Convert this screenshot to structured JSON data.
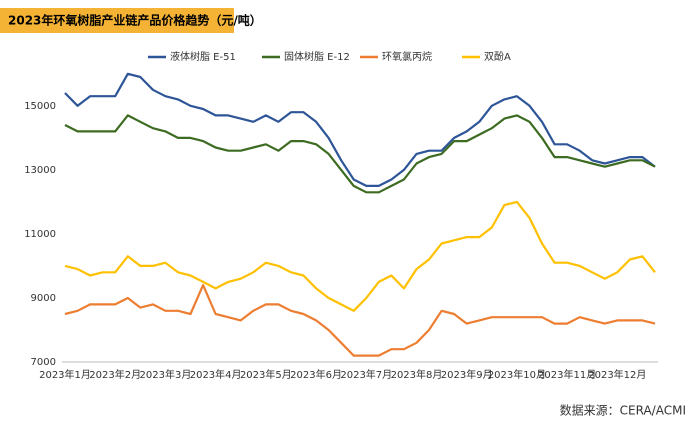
{
  "chart_data": {
    "type": "line",
    "title": "2023年环氧树脂产业链产品价格趋势（元/吨）",
    "source": "数据来源：CERA/ACMI",
    "categories": [
      "2023年1月",
      null,
      null,
      null,
      "2023年2月",
      null,
      null,
      null,
      "2023年3月",
      null,
      null,
      null,
      "2023年4月",
      null,
      null,
      null,
      "2023年5月",
      null,
      null,
      null,
      "2023年6月",
      null,
      null,
      null,
      "2023年7月",
      null,
      null,
      null,
      "2023年8月",
      null,
      null,
      null,
      "2023年9月",
      null,
      null,
      null,
      "2023年10月",
      null,
      null,
      null,
      "2023年11月",
      null,
      null,
      null,
      "2023年12月",
      null,
      null,
      null
    ],
    "series": [
      {
        "name": "液体树脂 E-51",
        "color": "#2e5597",
        "values": [
          15400,
          15000,
          15300,
          15300,
          15300,
          16000,
          15900,
          15500,
          15300,
          15200,
          15000,
          14900,
          14700,
          14700,
          14600,
          14500,
          14700,
          14500,
          14800,
          14800,
          14500,
          14000,
          13300,
          12700,
          12500,
          12500,
          12700,
          13000,
          13500,
          13600,
          13600,
          14000,
          14200,
          14500,
          15000,
          15200,
          15300,
          15000,
          14500,
          13800,
          13800,
          13600,
          13300,
          13200,
          13300,
          13400,
          13400,
          13100
        ]
      },
      {
        "name": "固体树脂 E-12",
        "color": "#3d6b22",
        "values": [
          14400,
          14200,
          14200,
          14200,
          14200,
          14700,
          14500,
          14300,
          14200,
          14000,
          14000,
          13900,
          13700,
          13600,
          13600,
          13700,
          13800,
          13600,
          13900,
          13900,
          13800,
          13500,
          13000,
          12500,
          12300,
          12300,
          12500,
          12700,
          13200,
          13400,
          13500,
          13900,
          13900,
          14100,
          14300,
          14600,
          14700,
          14500,
          14000,
          13400,
          13400,
          13300,
          13200,
          13100,
          13200,
          13300,
          13300,
          13100
        ]
      },
      {
        "name": "环氧氯丙烷",
        "color": "#ed7d31",
        "values": [
          8500,
          8600,
          8800,
          8800,
          8800,
          9000,
          8700,
          8800,
          8600,
          8600,
          8500,
          9400,
          8500,
          8400,
          8300,
          8600,
          8800,
          8800,
          8600,
          8500,
          8300,
          8000,
          7600,
          7200,
          7200,
          7200,
          7400,
          7400,
          7600,
          8000,
          8600,
          8500,
          8200,
          8300,
          8400,
          8400,
          8400,
          8400,
          8400,
          8200,
          8200,
          8400,
          8300,
          8200,
          8300,
          8300,
          8300,
          8200
        ]
      },
      {
        "name": "双酚A",
        "color": "#ffc000",
        "values": [
          10000,
          9900,
          9700,
          9800,
          9800,
          10300,
          10000,
          10000,
          10100,
          9800,
          9700,
          9500,
          9300,
          9500,
          9600,
          9800,
          10100,
          10000,
          9800,
          9700,
          9300,
          9000,
          8800,
          8600,
          9000,
          9500,
          9700,
          9300,
          9900,
          10200,
          10700,
          10800,
          10900,
          10900,
          11200,
          11900,
          12000,
          11500,
          10700,
          10100,
          10100,
          10000,
          9800,
          9600,
          9800,
          10200,
          10300,
          9800
        ]
      }
    ],
    "ylim": [
      7000,
      16400
    ],
    "yticks": [
      7000,
      9000,
      11000,
      13000,
      15000
    ]
  }
}
